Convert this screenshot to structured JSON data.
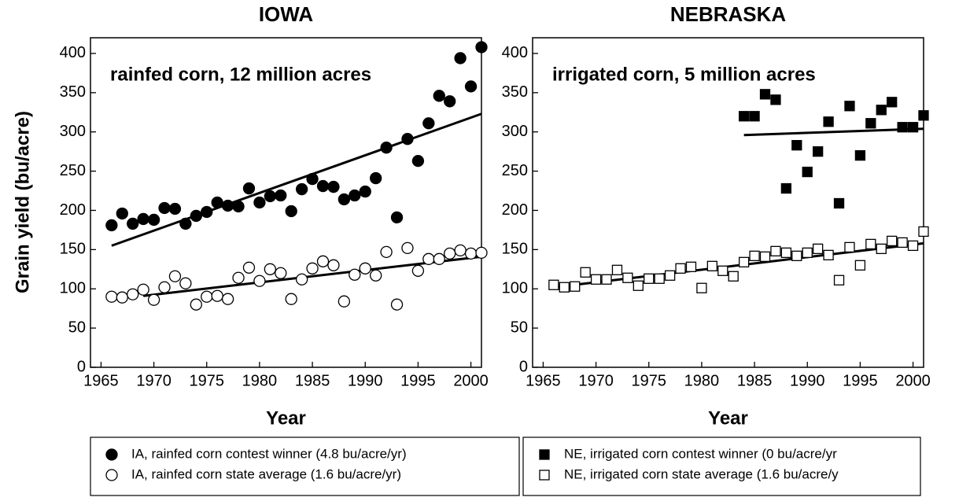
{
  "chart_data": [
    {
      "type": "scatter",
      "title": "IOWA",
      "y_label": "Grain yield (bu/acre)",
      "x_label": "Year",
      "annotation": "rainfed corn, 12 million acres",
      "xlim": [
        1964,
        2001
      ],
      "ylim": [
        0,
        420
      ],
      "xticks": [
        1965,
        1970,
        1975,
        1980,
        1985,
        1990,
        1995,
        2000
      ],
      "yticks": [
        0,
        50,
        100,
        150,
        200,
        250,
        300,
        350,
        400
      ],
      "series": [
        {
          "name": "IA, rainfed corn contest winner (4.8 bu/acre/yr)",
          "color": "#000000",
          "marker": "circle",
          "filled": true,
          "x": [
            1966,
            1967,
            1968,
            1969,
            1970,
            1971,
            1972,
            1973,
            1974,
            1975,
            1976,
            1977,
            1978,
            1979,
            1980,
            1981,
            1982,
            1983,
            1984,
            1985,
            1986,
            1987,
            1988,
            1989,
            1990,
            1991,
            1992,
            1993,
            1994,
            1995,
            1996,
            1997,
            1998,
            1999,
            2000,
            2001
          ],
          "values": [
            181,
            196,
            183,
            189,
            188,
            203,
            202,
            183,
            193,
            198,
            210,
            206,
            205,
            228,
            210,
            218,
            219,
            199,
            227,
            240,
            231,
            230,
            214,
            219,
            224,
            241,
            280,
            191,
            291,
            263,
            311,
            346,
            339,
            394,
            358,
            408
          ],
          "trend": {
            "x": [
              1966,
              2001
            ],
            "values": [
              155,
              323
            ]
          }
        },
        {
          "name": "IA, rainfed corn state average (1.6 bu/acre/yr)",
          "color": "#000000",
          "marker": "circle",
          "filled": false,
          "x": [
            1966,
            1967,
            1968,
            1969,
            1970,
            1971,
            1972,
            1973,
            1974,
            1975,
            1976,
            1977,
            1978,
            1979,
            1980,
            1981,
            1982,
            1983,
            1984,
            1985,
            1986,
            1987,
            1988,
            1989,
            1990,
            1991,
            1992,
            1993,
            1994,
            1995,
            1996,
            1997,
            1998,
            1999,
            2000,
            2001
          ],
          "values": [
            90,
            89,
            93,
            99,
            86,
            102,
            116,
            107,
            80,
            90,
            91,
            87,
            114,
            127,
            110,
            125,
            120,
            87,
            112,
            126,
            135,
            130,
            84,
            118,
            126,
            117,
            147,
            80,
            152,
            123,
            138,
            138,
            145,
            149,
            145,
            146
          ],
          "trend": {
            "x": [
              1969,
              2001
            ],
            "values": [
              91,
              141
            ]
          }
        }
      ]
    },
    {
      "type": "scatter",
      "title": "NEBRASKA",
      "x_label": "Year",
      "annotation": "irrigated corn, 5 million acres",
      "xlim": [
        1964,
        2001
      ],
      "ylim": [
        0,
        420
      ],
      "xticks": [
        1965,
        1970,
        1975,
        1980,
        1985,
        1990,
        1995,
        2000
      ],
      "yticks": [
        0,
        50,
        100,
        150,
        200,
        250,
        300,
        350,
        400
      ],
      "series": [
        {
          "name": "NE, irrigated corn contest winner (0 bu/acre/yr",
          "color": "#000000",
          "marker": "square",
          "filled": true,
          "x": [
            1984,
            1985,
            1986,
            1987,
            1988,
            1989,
            1990,
            1991,
            1992,
            1993,
            1994,
            1995,
            1996,
            1997,
            1998,
            1999,
            2000,
            2001
          ],
          "values": [
            320,
            320,
            348,
            341,
            228,
            283,
            249,
            275,
            313,
            209,
            333,
            270,
            311,
            328,
            338,
            306,
            306,
            321
          ],
          "trend": {
            "x": [
              1984,
              2001
            ],
            "values": [
              296,
              304
            ]
          }
        },
        {
          "name": "NE, irrigated corn state average (1.6 bu/acre/y",
          "color": "#000000",
          "marker": "square",
          "filled": false,
          "x": [
            1966,
            1967,
            1968,
            1969,
            1970,
            1971,
            1972,
            1973,
            1974,
            1975,
            1976,
            1977,
            1978,
            1979,
            1980,
            1981,
            1982,
            1983,
            1984,
            1985,
            1986,
            1987,
            1988,
            1989,
            1990,
            1991,
            1992,
            1993,
            1994,
            1995,
            1996,
            1997,
            1998,
            1999,
            2000,
            2001
          ],
          "values": [
            105,
            102,
            103,
            121,
            112,
            112,
            124,
            114,
            104,
            113,
            113,
            117,
            126,
            128,
            101,
            129,
            123,
            116,
            134,
            142,
            141,
            148,
            146,
            142,
            146,
            151,
            143,
            111,
            153,
            130,
            157,
            151,
            161,
            159,
            155,
            173
          ],
          "trend": {
            "x": [
              1966,
              2001
            ],
            "values": [
              102,
              158
            ]
          }
        }
      ]
    }
  ]
}
